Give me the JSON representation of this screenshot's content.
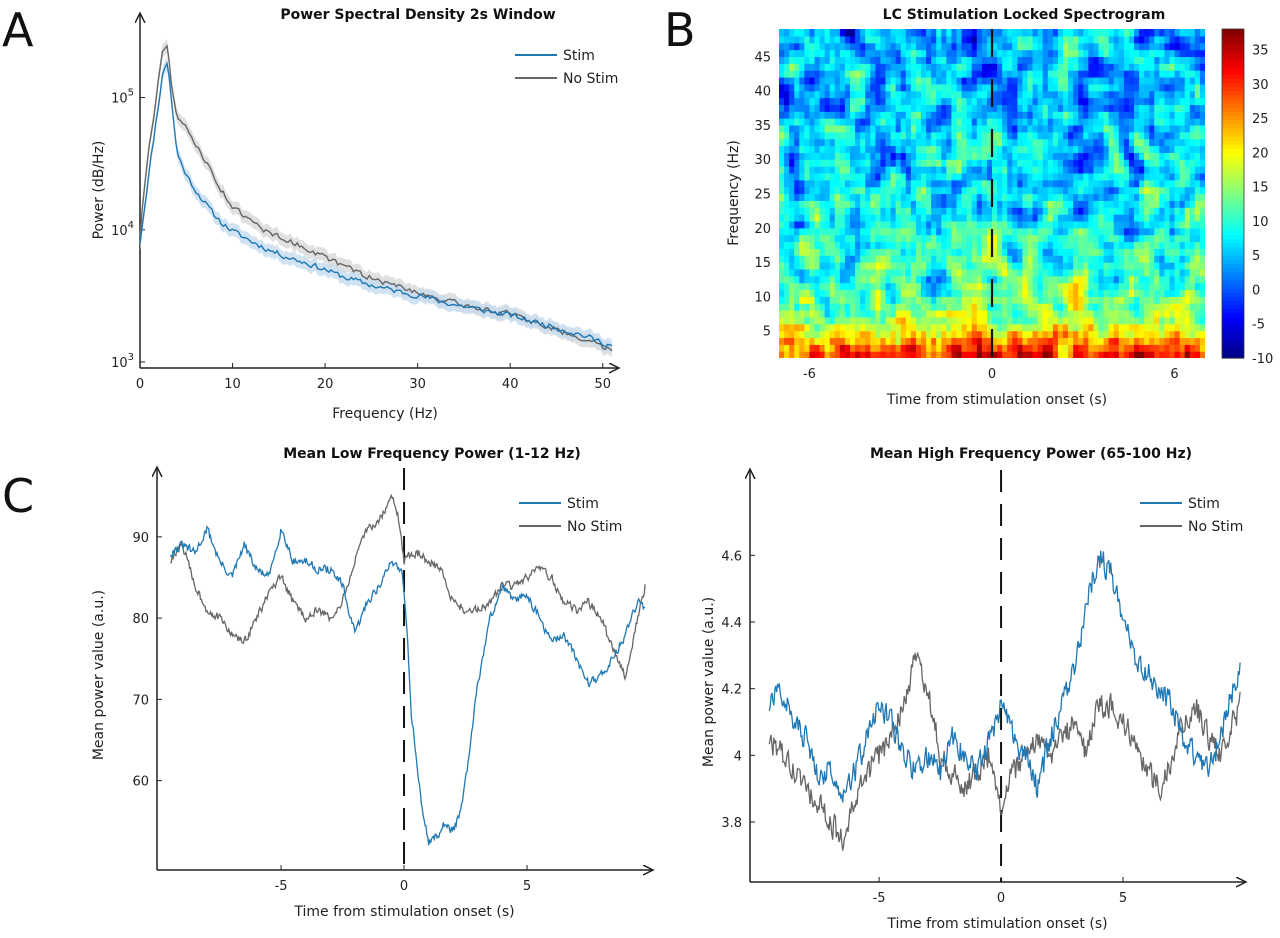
{
  "colors": {
    "stim": "#1f78b4",
    "nostim": "#666666",
    "stim_band": "#c5dcef",
    "nostim_band": "#d8d8d8"
  },
  "panel_letters": [
    "A",
    "B",
    "C"
  ],
  "chart_data": [
    {
      "id": "A",
      "type": "line",
      "title": "Power Spectral Density 2s Window",
      "xlabel": "Frequency (Hz)",
      "ylabel": "Power (dB/Hz)",
      "xlim": [
        0,
        51
      ],
      "ylim": [
        900,
        400000
      ],
      "yscale": "log",
      "x_ticks": [
        0,
        10,
        20,
        30,
        40,
        50
      ],
      "y_ticks": [
        {
          "v": 1000,
          "base": "10",
          "exp": "3"
        },
        {
          "v": 10000,
          "base": "10",
          "exp": "4"
        },
        {
          "v": 100000,
          "base": "10",
          "exp": "5"
        }
      ],
      "legend": "top-right",
      "series": [
        {
          "name": "Stim",
          "x": [
            0,
            0.5,
            1,
            1.5,
            2,
            2.5,
            3,
            3.5,
            4,
            5,
            6,
            7,
            8,
            9,
            10,
            12,
            14,
            16,
            18,
            20,
            22,
            25,
            28,
            30,
            33,
            36,
            40,
            44,
            48,
            51
          ],
          "y": [
            8000,
            15000,
            28000,
            50000,
            90000,
            160000,
            190000,
            80000,
            38000,
            26000,
            20000,
            16000,
            13000,
            11000,
            9800,
            8200,
            7000,
            6200,
            5600,
            5000,
            4400,
            3800,
            3400,
            3200,
            2800,
            2550,
            2250,
            1900,
            1580,
            1320
          ]
        },
        {
          "name": "No Stim",
          "x": [
            0,
            0.5,
            1,
            1.5,
            2,
            2.5,
            3,
            3.5,
            4,
            5,
            6,
            7,
            8,
            9,
            10,
            12,
            14,
            16,
            18,
            20,
            22,
            25,
            28,
            30,
            33,
            36,
            40,
            44,
            48,
            51
          ],
          "y": [
            9000,
            22000,
            45000,
            75000,
            140000,
            230000,
            260000,
            110000,
            70000,
            58000,
            45000,
            34000,
            25000,
            19000,
            15000,
            11500,
            9500,
            8300,
            7200,
            6200,
            5300,
            4300,
            3700,
            3400,
            2900,
            2600,
            2300,
            1850,
            1500,
            1220
          ]
        }
      ]
    },
    {
      "id": "B",
      "type": "heatmap",
      "title": "LC Stimulation Locked Spectrogram",
      "xlabel": "Time from stimulation onset (s)",
      "ylabel": "Frequency (Hz)",
      "xlim": [
        -7,
        7
      ],
      "ylim": [
        1,
        49
      ],
      "x_ticks": [
        -6,
        0,
        6
      ],
      "y_ticks": [
        5,
        10,
        15,
        20,
        25,
        30,
        35,
        40,
        45
      ],
      "colorbar": {
        "range": [
          -10,
          38
        ],
        "ticks": [
          -10,
          -5,
          0,
          5,
          10,
          15,
          20,
          25,
          30,
          35
        ],
        "colormap": "jet"
      },
      "value_pattern": "values highest (~30-38) at 1-8 Hz with hot spots near -2 s and 3 s; values mostly 0-15 above 15 Hz; dashed marker at 0 s"
    },
    {
      "id": "C1",
      "type": "line",
      "title": "Mean Low Frequency Power (1-12 Hz)",
      "xlabel": "Time from stimulation onset (s)",
      "ylabel": "Mean power value (a.u.)",
      "xlim": [
        -9.8,
        10
      ],
      "ylim": [
        49,
        97
      ],
      "x_ticks": [
        -5,
        0,
        5
      ],
      "y_ticks": [
        60,
        70,
        80,
        90
      ],
      "legend": "top-right",
      "stim_marker_x": 0,
      "series": [
        {
          "name": "Stim",
          "x": [
            -9.5,
            -9,
            -8.5,
            -8,
            -7.5,
            -7,
            -6.5,
            -6,
            -5.5,
            -5,
            -4.5,
            -4,
            -3.5,
            -3,
            -2.5,
            -2,
            -1.5,
            -1,
            -0.5,
            -0.1,
            0.1,
            0.3,
            0.5,
            0.7,
            1,
            1.3,
            1.6,
            2,
            2.3,
            2.6,
            3,
            3.5,
            4,
            4.5,
            5,
            5.5,
            6,
            6.5,
            7,
            7.5,
            8,
            8.5,
            9,
            9.5,
            9.8
          ],
          "y": [
            88,
            89,
            88,
            91,
            87,
            85,
            89,
            86,
            85,
            91,
            87,
            87,
            86,
            86,
            84,
            78,
            82,
            84,
            87,
            86,
            80,
            68,
            63,
            57,
            52.5,
            53,
            54.5,
            54,
            56,
            62,
            72,
            80,
            84,
            82,
            83,
            80,
            77,
            78,
            75,
            72,
            73,
            75,
            78,
            82,
            81
          ]
        },
        {
          "name": "No Stim",
          "x": [
            -9.5,
            -9,
            -8.5,
            -8,
            -7.5,
            -7,
            -6.5,
            -6,
            -5.5,
            -5,
            -4.5,
            -4,
            -3.5,
            -3,
            -2.5,
            -2,
            -1.5,
            -1,
            -0.5,
            -0.2,
            0,
            0.3,
            0.6,
            1,
            1.5,
            2,
            2.5,
            3,
            3.5,
            4,
            4.5,
            5,
            5.5,
            6,
            6.5,
            7,
            7.5,
            8,
            8.5,
            9,
            9.5,
            9.8
          ],
          "y": [
            87,
            89,
            84,
            81,
            80,
            78,
            77,
            80,
            83,
            85,
            82,
            80,
            81,
            80,
            82,
            87,
            91,
            92,
            95,
            92,
            87,
            88,
            88,
            87,
            86,
            82,
            81,
            81,
            82,
            84,
            84,
            85,
            86,
            85,
            82,
            81,
            82,
            80,
            76,
            73,
            80,
            84
          ]
        }
      ]
    },
    {
      "id": "C2",
      "type": "line",
      "title": "Mean High Frequency Power (65-100 Hz)",
      "xlabel": "Time from stimulation onset (s)",
      "ylabel": "Mean power value (a.u.)",
      "xlim": [
        -9.8,
        10
      ],
      "ylim": [
        3.62,
        4.82
      ],
      "x_ticks": [
        -5,
        0,
        5
      ],
      "y_ticks": [
        {
          "v": 3.8,
          "t": "3.8"
        },
        {
          "v": 4.0,
          "t": "4"
        },
        {
          "v": 4.2,
          "t": "4.2"
        },
        {
          "v": 4.4,
          "t": "4.4"
        },
        {
          "v": 4.6,
          "t": "4.6"
        }
      ],
      "legend": "top-right",
      "stim_marker_x": 0,
      "series": [
        {
          "name": "Stim",
          "x": [
            -9.5,
            -9,
            -8.5,
            -8,
            -7.5,
            -7,
            -6.5,
            -6,
            -5.5,
            -5,
            -4.5,
            -4,
            -3.5,
            -3,
            -2.5,
            -2,
            -1.5,
            -1,
            -0.5,
            0,
            0.5,
            1,
            1.5,
            2,
            2.5,
            3,
            3.5,
            4,
            4.5,
            5,
            5.5,
            6,
            6.5,
            7,
            7.5,
            8,
            8.5,
            9,
            9.5,
            9.8
          ],
          "y": [
            4.15,
            4.2,
            4.1,
            4.05,
            3.95,
            3.95,
            3.9,
            3.95,
            4.05,
            4.15,
            4.1,
            4.0,
            3.95,
            4.0,
            3.95,
            4.05,
            4.0,
            3.95,
            4.05,
            4.15,
            4.05,
            4.0,
            3.9,
            4.05,
            4.15,
            4.25,
            4.45,
            4.6,
            4.55,
            4.4,
            4.3,
            4.25,
            4.2,
            4.15,
            4.05,
            4.0,
            3.95,
            4.05,
            4.2,
            4.25
          ]
        },
        {
          "name": "No Stim",
          "x": [
            -9.5,
            -9,
            -8.5,
            -8,
            -7.5,
            -7,
            -6.5,
            -6,
            -5.5,
            -5,
            -4.5,
            -4,
            -3.5,
            -3,
            -2.5,
            -2,
            -1.5,
            -1,
            -0.5,
            0,
            0.5,
            1,
            1.5,
            2,
            2.5,
            3,
            3.5,
            4,
            4.5,
            5,
            5.5,
            6,
            6.5,
            7,
            7.5,
            8,
            8.5,
            9,
            9.5,
            9.8
          ],
          "y": [
            4.05,
            4.0,
            3.95,
            3.9,
            3.85,
            3.8,
            3.75,
            3.85,
            3.95,
            4.0,
            4.05,
            4.15,
            4.3,
            4.2,
            4.0,
            3.95,
            3.9,
            3.95,
            4.0,
            3.85,
            3.95,
            4.0,
            4.05,
            4.0,
            4.05,
            4.1,
            4.0,
            4.15,
            4.15,
            4.1,
            4.05,
            3.95,
            3.9,
            4.0,
            4.1,
            4.15,
            4.05,
            4.0,
            4.1,
            4.15
          ]
        }
      ]
    }
  ]
}
